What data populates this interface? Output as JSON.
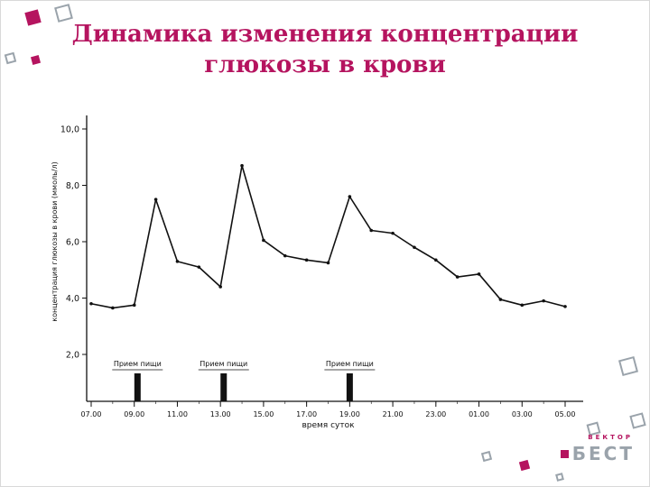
{
  "slide": {
    "title_line1": "Динамика изменения концентрации",
    "title_line2": "глюкозы в крови"
  },
  "logo": {
    "top": "ВЕКТОР",
    "main": "БЕСТ"
  },
  "colors": {
    "accent": "#b5145f",
    "logo_gray": "#9aa3ab",
    "line": "#111111"
  },
  "chart_data": {
    "type": "line",
    "title": "",
    "xlabel": "время суток",
    "ylabel": "концентрация глюкозы в крови (ммоль/л)",
    "ylim": [
      2,
      10
    ],
    "grid": false,
    "legend": "none",
    "x_ticks": [
      "07.00",
      "09.00",
      "11.00",
      "13.00",
      "15.00",
      "17.00",
      "19.00",
      "21.00",
      "23.00",
      "01.00",
      "03.00",
      "05.00"
    ],
    "y_ticks": [
      "2,0",
      "4,0",
      "6,0",
      "8,0",
      "10,0"
    ],
    "x_hours": [
      7,
      8,
      9,
      10,
      11,
      12,
      13,
      14,
      15,
      16,
      17,
      18,
      19,
      20,
      21,
      22,
      23,
      0,
      1,
      2,
      3,
      4,
      5
    ],
    "values": [
      3.8,
      3.65,
      3.75,
      7.5,
      5.3,
      5.1,
      4.4,
      8.7,
      6.05,
      5.5,
      5.35,
      5.25,
      7.6,
      6.4,
      6.3,
      5.8,
      5.35,
      4.75,
      4.85,
      3.95,
      3.75,
      3.9,
      3.7
    ],
    "meals": [
      {
        "label": "Прием пищи",
        "x_index": 2.15
      },
      {
        "label": "Прием пищи",
        "x_index": 6.15
      },
      {
        "label": "Прием пищи",
        "x_index": 12.0
      }
    ]
  }
}
